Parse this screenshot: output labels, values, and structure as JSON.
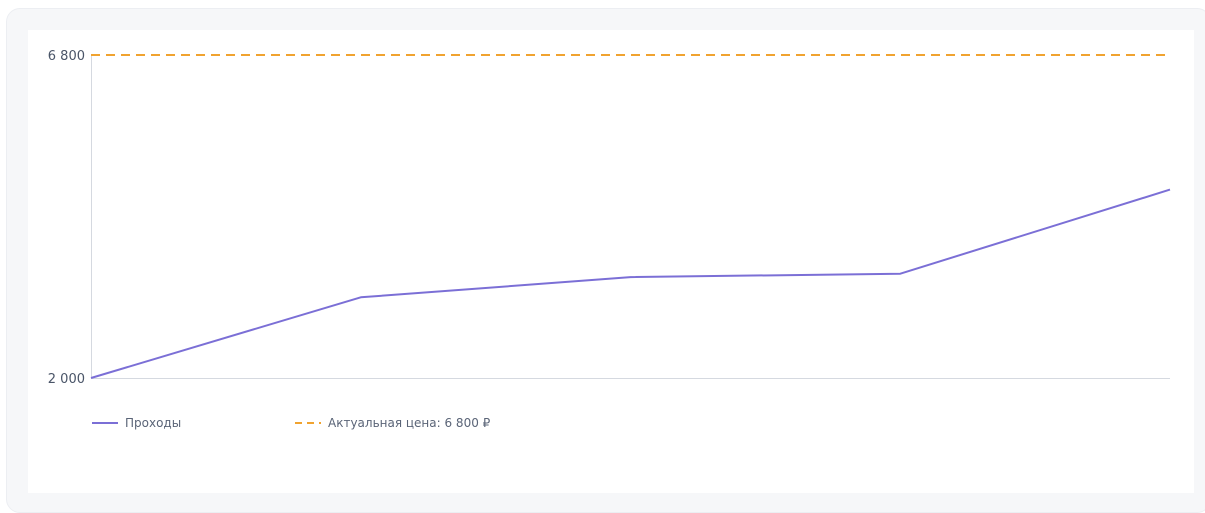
{
  "chart_data": {
    "type": "line",
    "x": [
      1,
      2,
      3,
      4,
      5
    ],
    "ylim": [
      2000,
      6800
    ],
    "yticks": [
      "6 800",
      "2 000"
    ],
    "ytick_values": [
      6800,
      2000
    ],
    "series": [
      {
        "name": "Проходы",
        "color": "#7b6fd6",
        "style": "solid",
        "values": [
          2000,
          3200,
          3500,
          3550,
          4800
        ]
      },
      {
        "name": "Актуальная цена: 6 800 ₽",
        "color": "#f0a330",
        "style": "dashed",
        "values": [
          6800,
          6800,
          6800,
          6800,
          6800
        ]
      }
    ],
    "legend_position": "bottom-left",
    "grid": false
  }
}
